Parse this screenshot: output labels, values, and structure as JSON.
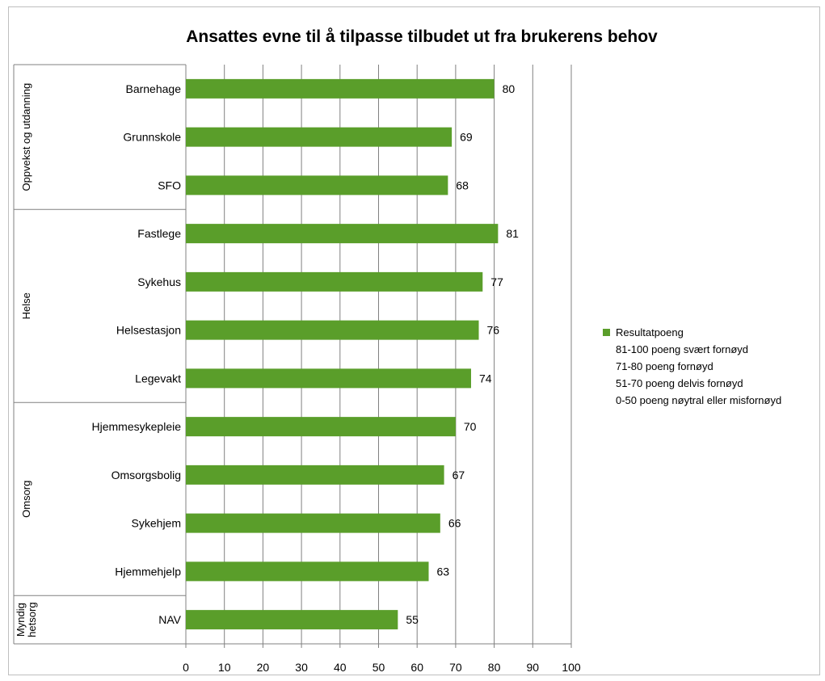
{
  "chart_data": {
    "type": "bar",
    "orientation": "horizontal",
    "title": "Ansattes evne til å tilpasse  tilbudet ut fra brukerens behov",
    "xlim": [
      0,
      100
    ],
    "xticks": [
      0,
      10,
      20,
      30,
      40,
      50,
      60,
      70,
      80,
      90,
      100
    ],
    "grid": true,
    "bar_color": "#5a9e2a",
    "categories": [
      "Barnehage",
      "Grunnskole",
      "SFO",
      "Fastlege",
      "Sykehus",
      "Helsestasjon",
      "Legevakt",
      "Hjemmesykepleie",
      "Omsorgsbolig",
      "Sykehjem",
      "Hjemmehjelp",
      "NAV"
    ],
    "values": [
      80,
      69,
      68,
      81,
      77,
      76,
      74,
      70,
      67,
      66,
      63,
      55
    ],
    "groups": [
      {
        "label_lines": [
          "Oppvekst og utdanning"
        ],
        "count": 3
      },
      {
        "label_lines": [
          "Helse"
        ],
        "count": 4
      },
      {
        "label_lines": [
          "Omsorg"
        ],
        "count": 4
      },
      {
        "label_lines": [
          "Myndig",
          "hetsorg"
        ],
        "count": 1
      }
    ],
    "legend": {
      "position": "right",
      "series_name": "Resultatpoeng",
      "notes": [
        "81-100 poeng svært fornøyd",
        "71-80 poeng fornøyd",
        "51-70 poeng delvis fornøyd",
        "0-50 poeng nøytral eller misfornøyd"
      ]
    }
  }
}
